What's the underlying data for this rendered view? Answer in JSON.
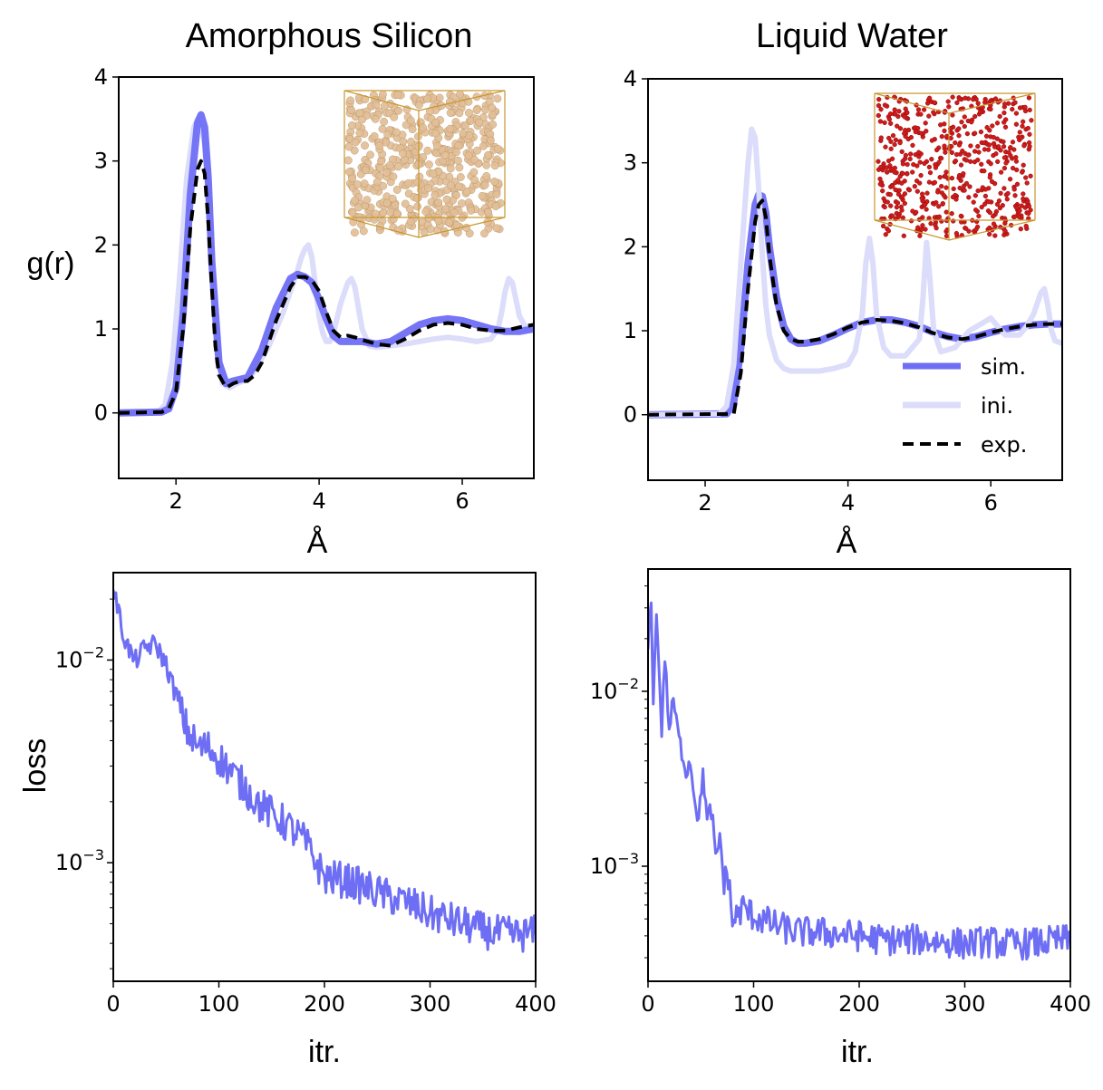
{
  "chart_data": [
    {
      "type": "line",
      "title": "Amorphous Silicon",
      "xlabel": "Å",
      "ylabel": "g(r)",
      "xlim": [
        1.2,
        7.0
      ],
      "ylim": [
        -0.78,
        4.0
      ],
      "xticks": [
        2,
        4,
        6
      ],
      "xtick_labels": [
        "2",
        "4",
        "6"
      ],
      "yticks": [
        0,
        1,
        2,
        3,
        4
      ],
      "ytick_labels": [
        "0",
        "1",
        "2",
        "3",
        "4"
      ],
      "inset": "a-Si atomic structure box (tan spheres)",
      "inset_colors": {
        "atom": "#e2bf97",
        "edge": "#c9962e"
      },
      "series": [
        {
          "name": "ini.",
          "color": "#dcdcfb",
          "x": [
            1.2,
            1.75,
            1.85,
            1.95,
            2.05,
            2.15,
            2.25,
            2.3,
            2.35,
            2.4,
            2.45,
            2.5,
            2.55,
            2.6,
            2.65,
            2.75,
            2.85,
            3.0,
            3.1,
            3.2,
            3.3,
            3.4,
            3.5,
            3.6,
            3.7,
            3.75,
            3.8,
            3.85,
            3.9,
            3.95,
            4.0,
            4.05,
            4.1,
            4.15,
            4.2,
            4.3,
            4.4,
            4.45,
            4.5,
            4.55,
            4.6,
            4.7,
            4.8,
            5.0,
            5.2,
            5.4,
            5.6,
            5.8,
            6.0,
            6.2,
            6.4,
            6.5,
            6.55,
            6.6,
            6.65,
            6.7,
            6.75,
            6.8,
            6.9,
            7.0
          ],
          "y": [
            0,
            0.01,
            0.1,
            0.6,
            1.6,
            2.8,
            3.4,
            3.5,
            3.45,
            3.2,
            2.7,
            1.9,
            1.2,
            0.6,
            0.35,
            0.3,
            0.35,
            0.4,
            0.5,
            0.65,
            0.8,
            1.0,
            1.2,
            1.45,
            1.7,
            1.85,
            1.95,
            2.0,
            1.85,
            1.5,
            1.15,
            0.95,
            0.85,
            0.85,
            0.95,
            1.3,
            1.55,
            1.6,
            1.5,
            1.25,
            1.0,
            0.8,
            0.78,
            0.8,
            0.82,
            0.85,
            0.88,
            0.9,
            0.88,
            0.85,
            0.88,
            1.0,
            1.2,
            1.45,
            1.6,
            1.55,
            1.35,
            1.15,
            1.0,
            1.0
          ]
        },
        {
          "name": "sim.",
          "color": "#6e6ef5",
          "x": [
            1.2,
            1.8,
            1.9,
            2.0,
            2.1,
            2.2,
            2.3,
            2.35,
            2.4,
            2.45,
            2.5,
            2.6,
            2.7,
            2.8,
            3.0,
            3.2,
            3.4,
            3.6,
            3.7,
            3.8,
            3.9,
            4.0,
            4.1,
            4.2,
            4.3,
            4.4,
            4.5,
            4.6,
            4.8,
            5.0,
            5.2,
            5.4,
            5.6,
            5.8,
            6.0,
            6.2,
            6.4,
            6.6,
            6.8,
            7.0
          ],
          "y": [
            0,
            0.01,
            0.05,
            0.3,
            1.2,
            2.6,
            3.45,
            3.55,
            3.4,
            2.8,
            1.8,
            0.6,
            0.35,
            0.38,
            0.42,
            0.75,
            1.25,
            1.6,
            1.65,
            1.62,
            1.55,
            1.35,
            1.12,
            0.92,
            0.85,
            0.85,
            0.85,
            0.85,
            0.82,
            0.85,
            0.95,
            1.05,
            1.1,
            1.12,
            1.1,
            1.05,
            1.0,
            0.97,
            0.97,
            1.0
          ]
        },
        {
          "name": "exp.",
          "color": "#000000",
          "x": [
            1.2,
            1.8,
            1.9,
            2.0,
            2.1,
            2.2,
            2.3,
            2.35,
            2.4,
            2.45,
            2.5,
            2.55,
            2.6,
            2.7,
            2.8,
            2.9,
            3.0,
            3.1,
            3.2,
            3.4,
            3.6,
            3.7,
            3.8,
            3.9,
            4.0,
            4.1,
            4.2,
            4.3,
            4.4,
            4.5,
            4.6,
            4.8,
            5.0,
            5.2,
            5.4,
            5.6,
            5.8,
            6.0,
            6.2,
            6.4,
            6.6,
            6.8,
            7.0
          ],
          "y": [
            0,
            0.01,
            0.05,
            0.25,
            1.0,
            2.2,
            2.9,
            3.0,
            2.85,
            2.3,
            1.5,
            0.8,
            0.45,
            0.3,
            0.35,
            0.38,
            0.38,
            0.45,
            0.6,
            1.1,
            1.5,
            1.62,
            1.62,
            1.58,
            1.45,
            1.2,
            0.98,
            0.9,
            0.92,
            0.9,
            0.87,
            0.82,
            0.8,
            0.88,
            0.98,
            1.05,
            1.07,
            1.05,
            1.0,
            0.98,
            0.98,
            1.02,
            1.05
          ]
        }
      ]
    },
    {
      "type": "line",
      "title": "Liquid Water",
      "xlabel": "Å",
      "xlim": [
        1.2,
        7.0
      ],
      "ylim": [
        -0.78,
        4.0
      ],
      "xticks": [
        2,
        4,
        6
      ],
      "xtick_labels": [
        "2",
        "4",
        "6"
      ],
      "yticks": [
        0,
        1,
        2,
        3,
        4
      ],
      "ytick_labels": [
        "0",
        "1",
        "2",
        "3",
        "4"
      ],
      "inset": "liquid water structure box (red spheres)",
      "inset_colors": {
        "atom": "#d11a1a",
        "edge": "#c9962e"
      },
      "legend_position": "lower-right",
      "series": [
        {
          "name": "sim.",
          "color": "#6e6ef5",
          "x": [
            1.2,
            2.3,
            2.4,
            2.5,
            2.6,
            2.7,
            2.75,
            2.8,
            2.85,
            2.9,
            3.0,
            3.1,
            3.2,
            3.3,
            3.4,
            3.6,
            3.8,
            4.0,
            4.2,
            4.4,
            4.6,
            4.8,
            5.0,
            5.2,
            5.4,
            5.6,
            5.8,
            6.0,
            6.2,
            6.4,
            6.6,
            6.8,
            7.0
          ],
          "y": [
            0,
            0.01,
            0.15,
            0.8,
            1.8,
            2.5,
            2.62,
            2.6,
            2.4,
            2.0,
            1.4,
            1.05,
            0.9,
            0.85,
            0.85,
            0.88,
            0.95,
            1.03,
            1.1,
            1.13,
            1.13,
            1.1,
            1.05,
            0.98,
            0.93,
            0.9,
            0.93,
            0.98,
            1.02,
            1.05,
            1.07,
            1.08,
            1.08
          ]
        },
        {
          "name": "ini.",
          "color": "#dcdcfb",
          "x": [
            1.2,
            2.2,
            2.3,
            2.4,
            2.5,
            2.6,
            2.65,
            2.7,
            2.75,
            2.8,
            2.85,
            2.9,
            3.0,
            3.1,
            3.2,
            3.4,
            3.6,
            3.8,
            4.0,
            4.1,
            4.2,
            4.25,
            4.3,
            4.35,
            4.4,
            4.5,
            4.6,
            4.8,
            5.0,
            5.05,
            5.1,
            5.15,
            5.2,
            5.3,
            5.5,
            5.7,
            5.9,
            6.0,
            6.1,
            6.2,
            6.4,
            6.5,
            6.6,
            6.7,
            6.75,
            6.8,
            6.85,
            6.9,
            7.0
          ],
          "y": [
            0,
            0.01,
            0.1,
            0.6,
            1.8,
            3.0,
            3.4,
            3.3,
            2.7,
            1.9,
            1.3,
            0.95,
            0.65,
            0.55,
            0.52,
            0.52,
            0.52,
            0.55,
            0.6,
            0.75,
            1.2,
            1.8,
            2.1,
            1.8,
            1.2,
            0.8,
            0.7,
            0.7,
            0.9,
            1.4,
            2.05,
            1.6,
            1.0,
            0.75,
            0.8,
            1.0,
            1.1,
            1.15,
            1.05,
            0.95,
            0.95,
            1.05,
            1.2,
            1.45,
            1.5,
            1.3,
            1.0,
            0.88,
            0.85
          ]
        },
        {
          "name": "exp.",
          "color": "#000000",
          "x": [
            1.2,
            2.4,
            2.5,
            2.6,
            2.7,
            2.75,
            2.8,
            2.85,
            2.9,
            3.0,
            3.1,
            3.2,
            3.3,
            3.4,
            3.6,
            3.8,
            4.0,
            4.2,
            4.4,
            4.6,
            4.8,
            5.0,
            5.2,
            5.4,
            5.6,
            5.8,
            6.0,
            6.2,
            6.4,
            6.6,
            6.8,
            7.0
          ],
          "y": [
            0,
            0.01,
            0.5,
            1.5,
            2.3,
            2.5,
            2.55,
            2.35,
            1.9,
            1.3,
            1.0,
            0.9,
            0.87,
            0.87,
            0.9,
            0.96,
            1.04,
            1.1,
            1.13,
            1.12,
            1.09,
            1.04,
            0.97,
            0.92,
            0.9,
            0.93,
            0.98,
            1.02,
            1.05,
            1.07,
            1.08,
            1.08
          ]
        }
      ]
    },
    {
      "type": "line",
      "ylabel": "loss",
      "xlabel": "itr.",
      "xlim": [
        0,
        400
      ],
      "ylim": [
        0.00026,
        0.027
      ],
      "yscale": "log",
      "xticks": [
        0,
        100,
        200,
        300,
        400
      ],
      "xtick_labels": [
        "0",
        "100",
        "200",
        "300",
        "400"
      ],
      "ytick_labels": [
        {
          "base": "10",
          "exp": "−2",
          "value": 0.01
        },
        {
          "base": "10",
          "exp": "−3",
          "value": 0.001
        }
      ],
      "series": [
        {
          "color": "#6e6ef5",
          "x": [
            0,
            10,
            20,
            30,
            40,
            50,
            60,
            70,
            80,
            90,
            100,
            120,
            140,
            160,
            180,
            200,
            220,
            240,
            260,
            280,
            300,
            320,
            340,
            360,
            380,
            400
          ],
          "y": [
            0.023,
            0.013,
            0.0098,
            0.0115,
            0.012,
            0.0095,
            0.0065,
            0.0045,
            0.0037,
            0.0037,
            0.0033,
            0.0025,
            0.0019,
            0.0016,
            0.0013,
            0.00085,
            0.00082,
            0.00075,
            0.00068,
            0.00063,
            0.00056,
            0.00052,
            0.00048,
            0.00045,
            0.00044,
            0.00045
          ]
        }
      ]
    },
    {
      "type": "line",
      "xlabel": "itr.",
      "xlim": [
        0,
        400
      ],
      "ylim": [
        0.00022,
        0.05
      ],
      "yscale": "log",
      "xticks": [
        0,
        100,
        200,
        300,
        400
      ],
      "xtick_labels": [
        "0",
        "100",
        "200",
        "300",
        "400"
      ],
      "ytick_labels": [
        {
          "base": "10",
          "exp": "−2",
          "value": 0.01
        },
        {
          "base": "10",
          "exp": "−3",
          "value": 0.001
        }
      ],
      "series": [
        {
          "color": "#6e6ef5",
          "x": [
            0,
            3,
            5,
            8,
            10,
            13,
            16,
            20,
            24,
            28,
            32,
            36,
            40,
            44,
            48,
            52,
            56,
            60,
            64,
            68,
            72,
            76,
            80,
            90,
            100,
            120,
            140,
            160,
            180,
            200,
            220,
            240,
            260,
            280,
            300,
            320,
            340,
            360,
            380,
            400
          ],
          "y": [
            0.018,
            0.035,
            0.008,
            0.03,
            0.015,
            0.006,
            0.016,
            0.006,
            0.009,
            0.006,
            0.0045,
            0.0035,
            0.004,
            0.0025,
            0.0018,
            0.0035,
            0.0018,
            0.0022,
            0.001,
            0.0015,
            0.0008,
            0.0009,
            0.00048,
            0.00058,
            0.00052,
            0.00046,
            0.00042,
            0.00042,
            0.00041,
            0.0004,
            0.00038,
            0.00038,
            0.00038,
            0.00037,
            0.00036,
            0.00037,
            0.00036,
            0.00036,
            0.00037,
            0.00038
          ]
        }
      ]
    }
  ]
}
